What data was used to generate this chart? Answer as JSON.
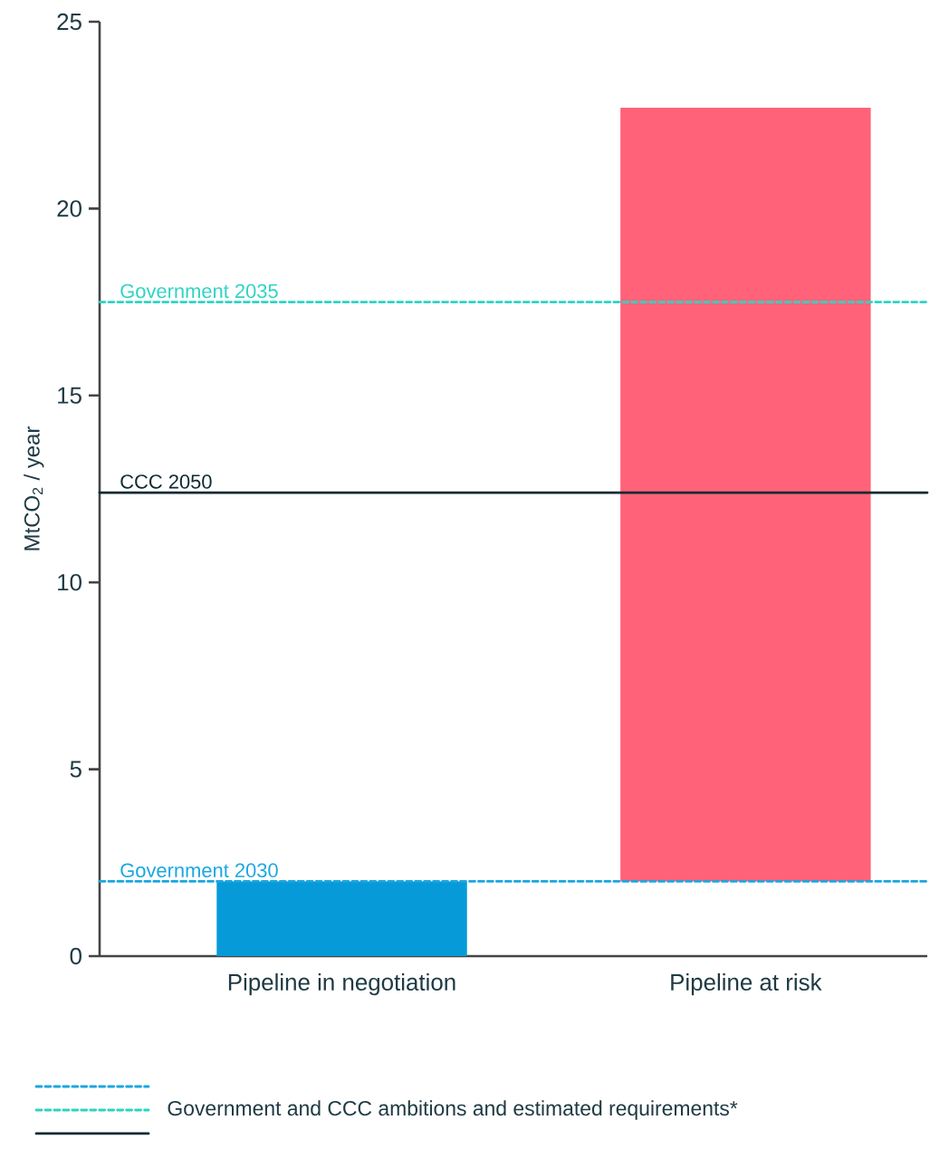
{
  "chart_data": {
    "type": "bar",
    "ylabel": "MtCO$_{2}$ / year",
    "categories": [
      "Pipeline in negotiation",
      "Pipeline at risk"
    ],
    "values": [
      2,
      20.7
    ],
    "base": [
      0,
      2
    ],
    "colors": [
      "#069bd8",
      "#ff6279"
    ],
    "ylim": [
      0,
      25
    ],
    "yticks": [
      0,
      5,
      10,
      15,
      20,
      25
    ],
    "ref_lines": [
      {
        "axis": "y",
        "value": 2,
        "label": "Government 2030",
        "color": "#1ba7e0",
        "line_style": "dashed"
      },
      {
        "axis": "y",
        "value": 17.5,
        "label": "Government 2035",
        "color": "#2fd3c4",
        "line_style": "dashed"
      },
      {
        "axis": "y",
        "value": 12.4,
        "label": "CCC 2050",
        "color": "#0f2a33",
        "line_style": "solid"
      }
    ],
    "annotations": [
      "Government and CCC ambitions and estimated requirements*"
    ]
  }
}
